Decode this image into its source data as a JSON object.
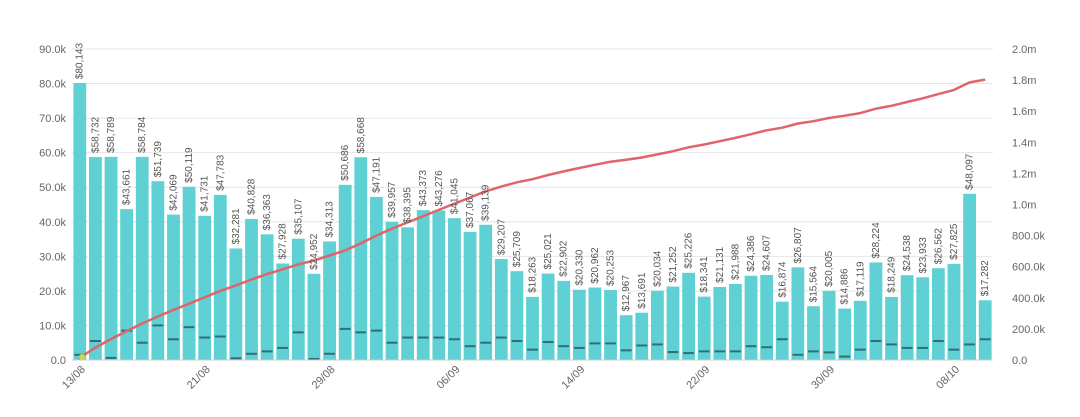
{
  "chart_data": {
    "type": "bar",
    "x_tick_labels": [
      "13/08",
      "21/08",
      "29/08",
      "06/09",
      "14/09",
      "22/09",
      "30/09",
      "08/10"
    ],
    "left_axis": {
      "ticks": [
        "0.0",
        "10.0k",
        "20.0k",
        "30.0k",
        "40.0k",
        "50.0k",
        "60.0k",
        "70.0k",
        "80.0k",
        "90.0k"
      ],
      "range": [
        0,
        90000
      ]
    },
    "right_axis": {
      "ticks": [
        "0.0",
        "200.0k",
        "400.0k",
        "600.0k",
        "800.0k",
        "1.0m",
        "1.2m",
        "1.4m",
        "1.6m",
        "1.8m",
        "2.0m"
      ],
      "range": [
        0,
        2000000
      ]
    },
    "grid": true,
    "bar_color": "#5fd0d3",
    "marker_color": "#2f6f75",
    "line_color": "#e0656a",
    "bars": {
      "values": [
        80143,
        58732,
        58789,
        43661,
        58784,
        51739,
        42069,
        50119,
        41731,
        47783,
        32281,
        40828,
        36363,
        27928,
        35107,
        24952,
        34313,
        50686,
        58668,
        47191,
        39957,
        38395,
        43373,
        43276,
        41045,
        37067,
        39139,
        29207,
        25709,
        18263,
        25021,
        22902,
        20330,
        20962,
        20253,
        12967,
        13691,
        20034,
        21252,
        25226,
        18341,
        21131,
        21988,
        24386,
        24607,
        16874,
        26807,
        15564,
        20005,
        14886,
        17119,
        28224,
        18249,
        24538,
        23933,
        26562,
        27825,
        48097,
        17282
      ],
      "labels": [
        "$80,143",
        "$58,732",
        "$58,789",
        "$43,661",
        "$58,784",
        "$51,739",
        "$42,069",
        "$50,119",
        "$41,731",
        "$47,783",
        "$32,281",
        "$40,828",
        "$36,363",
        "$27,928",
        "$35,107",
        "$24,952",
        "$34,313",
        "$50,686",
        "$58,668",
        "$47,191",
        "$39,957",
        "$38,395",
        "$43,373",
        "$43,276",
        "$41,045",
        "$37,067",
        "$39,139",
        "$29,207",
        "$25,709",
        "$18,263",
        "$25,021",
        "$22,902",
        "$20,330",
        "$20,962",
        "$20,253",
        "$12,967",
        "$13,691",
        "$20,034",
        "$21,252",
        "$25,226",
        "$18,341",
        "$21,131",
        "$21,988",
        "$24,386",
        "$24,607",
        "$16,874",
        "$26,807",
        "$15,564",
        "$20,005",
        "$14,886",
        "$17,119",
        "$28,224",
        "$18,249",
        "$24,538",
        "$23,933",
        "$26,562",
        "$27,825",
        "$48,097",
        "$17,282"
      ]
    },
    "markers": {
      "values": [
        1500,
        5500,
        600,
        8500,
        5000,
        10000,
        6000,
        9500,
        6500,
        6800,
        500,
        1800,
        2500,
        3500,
        8000,
        300,
        1800,
        9000,
        8000,
        8500,
        5000,
        6500,
        6500,
        6500,
        6000,
        4000,
        5000,
        6500,
        5500,
        3000,
        5200,
        4000,
        3500,
        4800,
        4800,
        2800,
        4200,
        4500,
        2300,
        2000,
        2500,
        2500,
        2500,
        4000,
        3700,
        6000,
        1500,
        2500,
        2200,
        1000,
        3000,
        5500,
        4500,
        3500,
        3500,
        5500,
        3000,
        4500,
        6000
      ]
    },
    "cumulative_line": {
      "values": [
        15000,
        80000,
        135000,
        185000,
        235000,
        280000,
        322000,
        362000,
        403000,
        445000,
        480000,
        518000,
        553000,
        583000,
        615000,
        640000,
        672000,
        705000,
        750000,
        800000,
        845000,
        885000,
        925000,
        965000,
        1005000,
        1045000,
        1085000,
        1115000,
        1143000,
        1163000,
        1190000,
        1213000,
        1235000,
        1255000,
        1275000,
        1288000,
        1302000,
        1322000,
        1343000,
        1368000,
        1386000,
        1407000,
        1428000,
        1452000,
        1477000,
        1494000,
        1521000,
        1536000,
        1556000,
        1571000,
        1588000,
        1616000,
        1635000,
        1659000,
        1683000,
        1710000,
        1737000,
        1785000,
        1803000
      ]
    }
  }
}
